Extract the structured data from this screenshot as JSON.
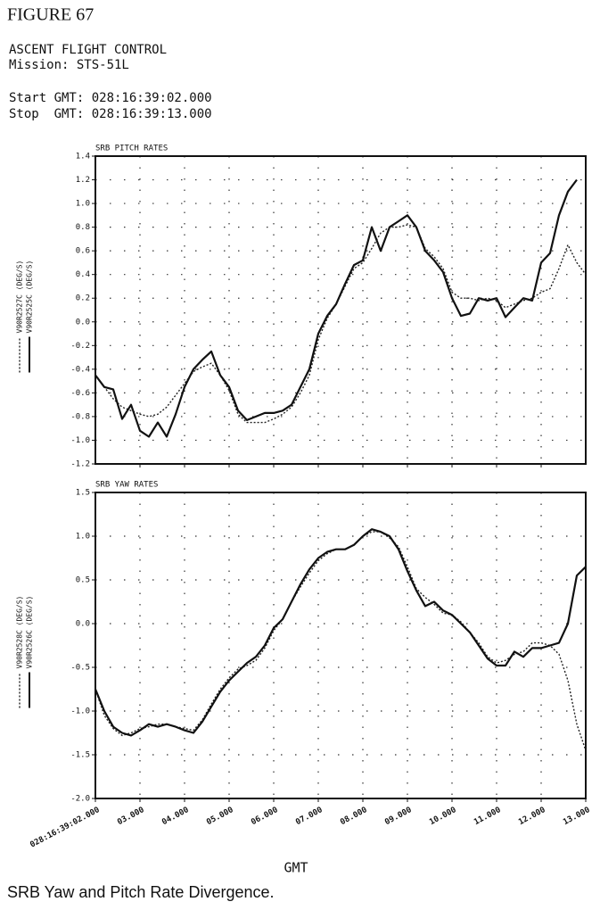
{
  "header": {
    "figure": "FIGURE 67",
    "title": "ASCENT FLIGHT CONTROL",
    "mission": "Mission: STS-51L",
    "start": "Start GMT: 028:16:39:02.000",
    "stop": "Stop  GMT: 028:16:39:13.000"
  },
  "caption": "SRB Yaw and Pitch Rate Divergence.",
  "chart_data": [
    {
      "type": "line",
      "title": "SRB PITCH RATES",
      "grid": true,
      "x": [
        2,
        2.2,
        2.4,
        2.6,
        2.8,
        3,
        3.2,
        3.4,
        3.6,
        3.8,
        4,
        4.2,
        4.4,
        4.6,
        4.8,
        5,
        5.2,
        5.4,
        5.6,
        5.8,
        6,
        6.2,
        6.4,
        6.6,
        6.8,
        7,
        7.2,
        7.4,
        7.6,
        7.8,
        8,
        8.2,
        8.4,
        8.6,
        8.8,
        9,
        9.2,
        9.4,
        9.6,
        9.8,
        10,
        10.2,
        10.4,
        10.6,
        10.8,
        11,
        11.2,
        11.4,
        11.6,
        11.8,
        12,
        12.2,
        12.4,
        12.6,
        12.8,
        13
      ],
      "xlim": [
        2,
        13
      ],
      "xticks": [
        3,
        4,
        5,
        6,
        7,
        8,
        9,
        10,
        11,
        12
      ],
      "ylim": [
        -1.2,
        1.4
      ],
      "yticks": [
        {
          "value": -1.2,
          "label": "-1.2"
        },
        {
          "value": -1,
          "label": "-1.0"
        },
        -0.8,
        -0.6,
        -0.4,
        -0.2,
        {
          "value": 0,
          "label": "0.0"
        },
        0.2,
        0.4,
        0.6,
        0.8,
        {
          "value": 1,
          "label": "1.0"
        },
        1.2,
        1.4
      ],
      "series": [
        {
          "name": "V90R2527C (DEG/S)",
          "color": "#222",
          "style": "dotted",
          "values": [
            -0.45,
            -0.55,
            -0.65,
            -0.72,
            -0.75,
            -0.78,
            -0.8,
            -0.78,
            -0.72,
            -0.62,
            -0.52,
            -0.42,
            -0.38,
            -0.35,
            -0.45,
            -0.58,
            -0.78,
            -0.85,
            -0.85,
            -0.85,
            -0.82,
            -0.78,
            -0.72,
            -0.6,
            -0.45,
            -0.15,
            0.03,
            0.15,
            0.3,
            0.45,
            0.5,
            0.62,
            0.75,
            0.8,
            0.8,
            0.82,
            0.8,
            0.62,
            0.55,
            0.45,
            0.25,
            0.2,
            0.2,
            0.18,
            0.2,
            0.18,
            0.12,
            0.15,
            0.18,
            0.2,
            0.25,
            0.28,
            0.45,
            0.65,
            0.5,
            0.4
          ]
        },
        {
          "name": "V90R2525C (DEG/S)",
          "color": "#111",
          "style": "solid",
          "values": [
            -0.45,
            -0.55,
            -0.57,
            -0.82,
            -0.7,
            -0.92,
            -0.97,
            -0.85,
            -0.97,
            -0.78,
            -0.55,
            -0.4,
            -0.32,
            -0.25,
            -0.45,
            -0.55,
            -0.75,
            -0.83,
            -0.8,
            -0.77,
            -0.77,
            -0.75,
            -0.7,
            -0.55,
            -0.4,
            -0.1,
            0.05,
            0.15,
            0.32,
            0.48,
            0.52,
            0.8,
            0.6,
            0.8,
            0.85,
            0.9,
            0.8,
            0.6,
            0.52,
            0.42,
            0.2,
            0.05,
            0.07,
            0.2,
            0.18,
            0.2,
            0.04,
            0.12,
            0.2,
            0.18,
            0.5,
            0.58,
            0.9,
            1.1,
            1.2,
            null
          ]
        }
      ]
    },
    {
      "type": "line",
      "title": "SRB YAW RATES",
      "xlabel": "GMT",
      "grid": true,
      "x": [
        2,
        2.2,
        2.4,
        2.6,
        2.8,
        3,
        3.2,
        3.4,
        3.6,
        3.8,
        4,
        4.2,
        4.4,
        4.6,
        4.8,
        5,
        5.2,
        5.4,
        5.6,
        5.8,
        6,
        6.2,
        6.4,
        6.6,
        6.8,
        7,
        7.2,
        7.4,
        7.6,
        7.8,
        8,
        8.2,
        8.4,
        8.6,
        8.8,
        9,
        9.2,
        9.4,
        9.6,
        9.8,
        10,
        10.2,
        10.4,
        10.6,
        10.8,
        11,
        11.2,
        11.4,
        11.6,
        11.8,
        12,
        12.2,
        12.4,
        12.6,
        12.8,
        13
      ],
      "xlim": [
        2,
        13
      ],
      "xticks": [
        {
          "value": 2,
          "label": "028:16:39:02.000"
        },
        {
          "value": 3,
          "label": "03.000"
        },
        {
          "value": 4,
          "label": "04.000"
        },
        {
          "value": 5,
          "label": "05.000"
        },
        {
          "value": 6,
          "label": "06.000"
        },
        {
          "value": 7,
          "label": "07.000"
        },
        {
          "value": 8,
          "label": "08.000"
        },
        {
          "value": 9,
          "label": "09.000"
        },
        {
          "value": 10,
          "label": "10.000"
        },
        {
          "value": 11,
          "label": "11.000"
        },
        {
          "value": 12,
          "label": "12.000"
        },
        {
          "value": 13,
          "label": "13.000"
        }
      ],
      "ylim": [
        -2,
        1.5
      ],
      "yticks": [
        {
          "value": -2,
          "label": "-2.0"
        },
        -1.5,
        {
          "value": -1,
          "label": "-1.0"
        },
        -0.5,
        {
          "value": 0,
          "label": "0.0"
        },
        0.5,
        {
          "value": 1,
          "label": "1.0"
        },
        1.5
      ],
      "series": [
        {
          "name": "V90R2528C (DEG/S)",
          "color": "#222",
          "style": "dotted",
          "values": [
            -0.75,
            -1.05,
            -1.2,
            -1.28,
            -1.25,
            -1.2,
            -1.18,
            -1.15,
            -1.15,
            -1.18,
            -1.2,
            -1.22,
            -1.1,
            -0.92,
            -0.75,
            -0.62,
            -0.52,
            -0.48,
            -0.42,
            -0.28,
            -0.08,
            0.05,
            0.25,
            0.42,
            0.58,
            0.72,
            0.8,
            0.85,
            0.85,
            0.9,
            1.0,
            1.05,
            1.05,
            0.98,
            0.88,
            0.65,
            0.4,
            0.3,
            0.22,
            0.12,
            0.1,
            0.02,
            -0.1,
            -0.22,
            -0.38,
            -0.45,
            -0.42,
            -0.35,
            -0.32,
            -0.22,
            -0.22,
            -0.25,
            -0.35,
            -0.65,
            -1.15,
            -1.45
          ]
        },
        {
          "name": "V90R2526C (DEG/S)",
          "color": "#111",
          "style": "solid",
          "values": [
            -0.75,
            -1.0,
            -1.18,
            -1.25,
            -1.28,
            -1.22,
            -1.15,
            -1.18,
            -1.15,
            -1.18,
            -1.22,
            -1.25,
            -1.12,
            -0.95,
            -0.78,
            -0.65,
            -0.55,
            -0.45,
            -0.38,
            -0.25,
            -0.05,
            0.05,
            0.25,
            0.45,
            0.62,
            0.75,
            0.82,
            0.85,
            0.85,
            0.9,
            1.0,
            1.08,
            1.05,
            1.0,
            0.85,
            0.6,
            0.38,
            0.2,
            0.25,
            0.15,
            0.1,
            0.0,
            -0.1,
            -0.25,
            -0.4,
            -0.48,
            -0.48,
            -0.32,
            -0.38,
            -0.28,
            -0.28,
            -0.25,
            -0.22,
            0.0,
            0.55,
            0.65
          ]
        }
      ]
    }
  ]
}
